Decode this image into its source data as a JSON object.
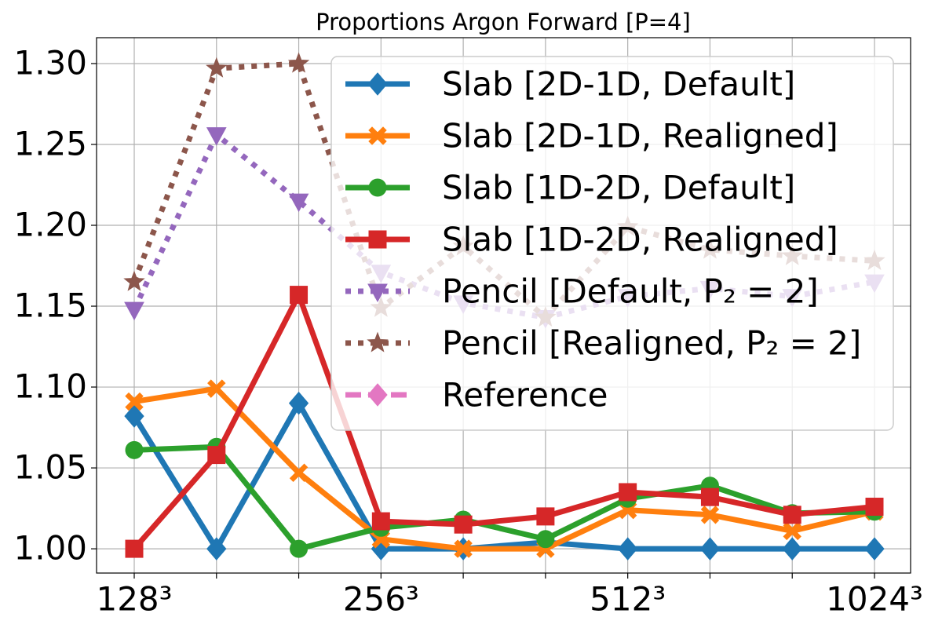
{
  "chart_data": {
    "type": "line",
    "title": "Proportions Argon Forward [P=4]",
    "categories": [
      "128³",
      null,
      null,
      "256³",
      null,
      null,
      "512³",
      null,
      null,
      "1024³"
    ],
    "series": [
      {
        "name": "Slab [2D-1D, Default]",
        "color": "#1f77b4",
        "marker": "diamond",
        "linestyle": "solid",
        "values": [
          1.082,
          1.0,
          1.09,
          1.0,
          1.0,
          1.004,
          1.0,
          1.0,
          1.0,
          1.0
        ]
      },
      {
        "name": "Slab [2D-1D, Realigned]",
        "color": "#ff7f0e",
        "marker": "x",
        "linestyle": "solid",
        "values": [
          1.091,
          1.099,
          1.047,
          1.006,
          1.0,
          1.0,
          1.024,
          1.021,
          1.011,
          1.023
        ]
      },
      {
        "name": "Slab [1D-2D, Default]",
        "color": "#2ca02c",
        "marker": "circle",
        "linestyle": "solid",
        "values": [
          1.061,
          1.063,
          1.0,
          1.013,
          1.018,
          1.006,
          1.031,
          1.039,
          1.022,
          1.023
        ]
      },
      {
        "name": "Slab [1D-2D, Realigned]",
        "color": "#d62728",
        "marker": "square",
        "linestyle": "solid",
        "values": [
          1.0,
          1.058,
          1.157,
          1.017,
          1.015,
          1.02,
          1.035,
          1.032,
          1.021,
          1.026
        ]
      },
      {
        "name": "Pencil [Default, P₂ = 2]",
        "color": "#9467bd",
        "marker": "triangle-down",
        "linestyle": "dotted",
        "values": [
          1.148,
          1.256,
          1.215,
          1.171,
          1.152,
          1.143,
          1.156,
          1.161,
          1.156,
          1.165
        ]
      },
      {
        "name": "Pencil [Realigned, P₂ = 2]",
        "color": "#8c564b",
        "marker": "star",
        "linestyle": "dotted",
        "values": [
          1.165,
          1.297,
          1.3,
          1.149,
          1.187,
          1.143,
          1.199,
          1.185,
          1.181,
          1.178
        ]
      },
      {
        "name": "Reference",
        "color": "#e377c2",
        "marker": "diamond",
        "linestyle": "dashed",
        "values": [
          null,
          null,
          null,
          null,
          null,
          null,
          null,
          null,
          null,
          null
        ]
      }
    ],
    "ylim": [
      0.985,
      1.316
    ],
    "yticks": [
      {
        "value": 1.0,
        "label": "1.00"
      },
      1.05,
      {
        "value": 1.1,
        "label": "1.10"
      },
      1.15,
      {
        "value": 1.2,
        "label": "1.20"
      },
      1.25,
      {
        "value": 1.3,
        "label": "1.30"
      }
    ],
    "grid": true,
    "legend": "upper right"
  }
}
